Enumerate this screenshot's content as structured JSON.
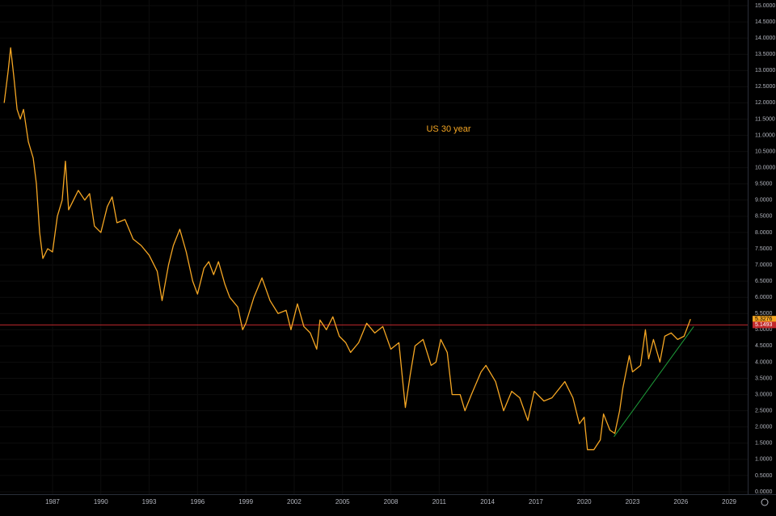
{
  "chart_data": {
    "type": "line",
    "annotation": "US 30 year",
    "x": [
      1984.0,
      1984.25,
      1984.4,
      1984.6,
      1984.8,
      1985.0,
      1985.2,
      1985.5,
      1985.8,
      1986.0,
      1986.2,
      1986.4,
      1986.7,
      1987.0,
      1987.3,
      1987.6,
      1987.8,
      1988.0,
      1988.3,
      1988.6,
      1989.0,
      1989.3,
      1989.6,
      1990.0,
      1990.4,
      1990.7,
      1991.0,
      1991.5,
      1992.0,
      1992.5,
      1993.0,
      1993.5,
      1993.8,
      1994.2,
      1994.5,
      1994.9,
      1995.3,
      1995.7,
      1996.0,
      1996.4,
      1996.7,
      1997.0,
      1997.3,
      1997.7,
      1998.0,
      1998.5,
      1998.8,
      1999.0,
      1999.5,
      2000.0,
      2000.5,
      2001.0,
      2001.5,
      2001.8,
      2002.2,
      2002.6,
      2003.0,
      2003.4,
      2003.6,
      2004.0,
      2004.4,
      2004.8,
      2005.2,
      2005.5,
      2006.0,
      2006.5,
      2007.0,
      2007.5,
      2008.0,
      2008.5,
      2008.9,
      2009.2,
      2009.5,
      2010.0,
      2010.5,
      2010.8,
      2011.1,
      2011.5,
      2011.8,
      2012.3,
      2012.6,
      2013.0,
      2013.6,
      2013.9,
      2014.5,
      2015.0,
      2015.5,
      2016.0,
      2016.5,
      2016.9,
      2017.5,
      2018.0,
      2018.8,
      2019.3,
      2019.7,
      2020.0,
      2020.2,
      2020.6,
      2021.0,
      2021.2,
      2021.6,
      2021.9,
      2022.2,
      2022.4,
      2022.8,
      2023.0,
      2023.5,
      2023.8,
      2024.0,
      2024.3,
      2024.7,
      2025.0,
      2025.4,
      2025.8,
      2026.2,
      2026.6
    ],
    "series": [
      {
        "name": "US 30 year",
        "color": "#f5a623",
        "values": [
          12.0,
          13.0,
          13.7,
          12.8,
          11.8,
          11.5,
          11.8,
          10.8,
          10.3,
          9.5,
          8.0,
          7.2,
          7.5,
          7.4,
          8.5,
          9.0,
          10.2,
          8.7,
          9.0,
          9.3,
          9.0,
          9.2,
          8.2,
          8.0,
          8.8,
          9.1,
          8.3,
          8.4,
          7.8,
          7.6,
          7.3,
          6.8,
          5.9,
          7.0,
          7.6,
          8.1,
          7.4,
          6.5,
          6.1,
          6.9,
          7.1,
          6.7,
          7.1,
          6.4,
          6.0,
          5.7,
          5.0,
          5.2,
          6.0,
          6.6,
          5.9,
          5.5,
          5.6,
          5.0,
          5.8,
          5.1,
          4.9,
          4.4,
          5.3,
          5.0,
          5.4,
          4.8,
          4.6,
          4.3,
          4.6,
          5.2,
          4.9,
          5.1,
          4.4,
          4.6,
          2.6,
          3.6,
          4.5,
          4.7,
          3.9,
          4.0,
          4.7,
          4.3,
          3.0,
          3.0,
          2.5,
          3.0,
          3.7,
          3.9,
          3.4,
          2.5,
          3.1,
          2.9,
          2.2,
          3.1,
          2.8,
          2.9,
          3.4,
          2.9,
          2.1,
          2.3,
          1.3,
          1.3,
          1.6,
          2.4,
          1.9,
          1.8,
          2.5,
          3.2,
          4.2,
          3.7,
          3.9,
          5.0,
          4.1,
          4.7,
          4.0,
          4.8,
          4.9,
          4.7,
          4.8,
          5.3276
        ]
      }
    ],
    "trendline": {
      "color": "#1e9e3a",
      "x": [
        2021.85,
        2026.8
      ],
      "y": [
        1.7,
        5.1
      ]
    },
    "hline": {
      "value": 5.1493,
      "color": "#c0282b"
    },
    "price_labels": [
      5.3276,
      5.1493
    ],
    "xlim": [
      1983.74,
      2030.15
    ],
    "xticks": [
      1987,
      1990,
      1993,
      1996,
      1999,
      2002,
      2005,
      2008,
      2011,
      2014,
      2017,
      2020,
      2023,
      2026,
      2029
    ],
    "ylim": [
      0,
      15
    ],
    "yticks": [
      {
        "value": 0,
        "label": "0.0000"
      },
      {
        "value": 0.5,
        "label": "0.5000"
      },
      {
        "value": 1,
        "label": "1.0000"
      },
      {
        "value": 1.5,
        "label": "1.5000"
      },
      {
        "value": 2,
        "label": "2.0000"
      },
      {
        "value": 2.5,
        "label": "2.5000"
      },
      {
        "value": 3,
        "label": "3.0000"
      },
      {
        "value": 3.5,
        "label": "3.5000"
      },
      {
        "value": 4,
        "label": "4.0000"
      },
      {
        "value": 4.5,
        "label": "4.5000"
      },
      {
        "value": 5,
        "label": "5.0000"
      },
      {
        "value": 5.5,
        "label": "5.5000"
      },
      {
        "value": 6,
        "label": "6.0000"
      },
      {
        "value": 6.5,
        "label": "6.5000"
      },
      {
        "value": 7,
        "label": "7.0000"
      },
      {
        "value": 7.5,
        "label": "7.5000"
      },
      {
        "value": 8,
        "label": "8.0000"
      },
      {
        "value": 8.5,
        "label": "8.5000"
      },
      {
        "value": 9,
        "label": "9.0000"
      },
      {
        "value": 9.5,
        "label": "9.5000"
      },
      {
        "value": 10,
        "label": "10.0000"
      },
      {
        "value": 10.5,
        "label": "10.5000"
      },
      {
        "value": 11,
        "label": "11.0000"
      },
      {
        "value": 11.5,
        "label": "11.5000"
      },
      {
        "value": 12,
        "label": "12.0000"
      },
      {
        "value": 12.5,
        "label": "12.5000"
      },
      {
        "value": 13,
        "label": "13.0000"
      },
      {
        "value": 13.5,
        "label": "13.5000"
      },
      {
        "value": 14,
        "label": "14.0000"
      },
      {
        "value": 14.5,
        "label": "14.5000"
      },
      {
        "value": 15,
        "label": "15.0000"
      }
    ]
  }
}
